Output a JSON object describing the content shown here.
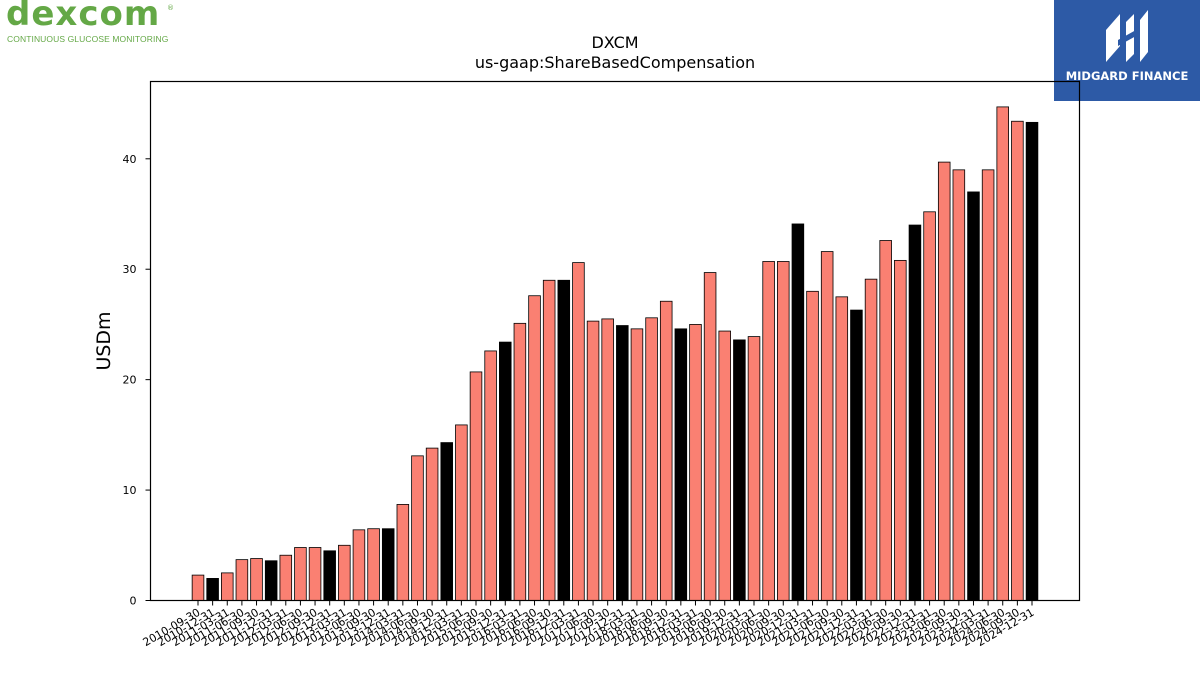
{
  "branding": {
    "left_logo_word": "dexcom",
    "left_logo_tagline": "CONTINUOUS GLUCOSE MONITORING",
    "left_logo_reg": "®",
    "right_logo_name": "MIDGARD FINANCE",
    "colors": {
      "dexcom_green": "#64a846",
      "midgard_blue": "#2d5aa6"
    }
  },
  "chart_data": {
    "type": "bar",
    "title": "DXCM",
    "subtitle": "us-gaap:ShareBasedCompensation",
    "xlabel": "",
    "ylabel": "USDm",
    "ylim": [
      0,
      47
    ],
    "yticks": [
      0,
      10,
      20,
      30,
      40
    ],
    "grid": false,
    "colors": {
      "quarter": "#fa8072",
      "fiscal_year_end": "#000000"
    },
    "categories": [
      "2010-09-30",
      "2010-12-31",
      "2011-03-31",
      "2011-06-30",
      "2011-09-30",
      "2011-12-31",
      "2012-03-31",
      "2012-06-30",
      "2012-09-30",
      "2012-12-31",
      "2013-03-31",
      "2013-06-30",
      "2013-09-30",
      "2013-12-31",
      "2014-03-31",
      "2014-06-30",
      "2014-09-30",
      "2014-12-31",
      "2015-03-31",
      "2015-06-30",
      "2015-09-30",
      "2015-12-31",
      "2016-03-31",
      "2016-06-30",
      "2016-09-30",
      "2016-12-31",
      "2017-03-31",
      "2017-06-30",
      "2017-09-30",
      "2017-12-31",
      "2018-03-31",
      "2018-06-30",
      "2018-09-30",
      "2018-12-31",
      "2019-03-31",
      "2019-06-30",
      "2019-09-30",
      "2019-12-31",
      "2020-03-31",
      "2020-06-30",
      "2020-09-30",
      "2020-12-31",
      "2021-03-31",
      "2021-06-30",
      "2021-09-30",
      "2021-12-31",
      "2022-03-31",
      "2022-06-30",
      "2022-09-30",
      "2022-12-31",
      "2023-03-31",
      "2023-06-30",
      "2023-09-30",
      "2023-12-31",
      "2024-03-31",
      "2024-06-30",
      "2024-09-30",
      "2024-12-31"
    ],
    "values": [
      2.3,
      2.0,
      2.5,
      3.7,
      3.8,
      3.6,
      4.1,
      4.8,
      4.8,
      4.5,
      5.0,
      6.4,
      6.5,
      6.5,
      8.7,
      13.1,
      13.8,
      14.3,
      15.9,
      20.7,
      22.6,
      23.4,
      25.1,
      27.6,
      29.0,
      29.0,
      30.6,
      25.3,
      25.5,
      24.9,
      24.6,
      25.6,
      27.1,
      24.6,
      25.0,
      29.7,
      24.4,
      23.6,
      23.9,
      30.7,
      30.7,
      34.1,
      28.0,
      31.6,
      27.5,
      26.3,
      29.1,
      32.6,
      30.8,
      34.0,
      35.2,
      39.7,
      39.0,
      37.0,
      39.0,
      44.7,
      43.4,
      43.3
    ],
    "highlight": [
      false,
      true,
      false,
      false,
      false,
      true,
      false,
      false,
      false,
      true,
      false,
      false,
      false,
      true,
      false,
      false,
      false,
      true,
      false,
      false,
      false,
      true,
      false,
      false,
      false,
      true,
      false,
      false,
      false,
      true,
      false,
      false,
      false,
      true,
      false,
      false,
      false,
      true,
      false,
      false,
      false,
      true,
      false,
      false,
      false,
      true,
      false,
      false,
      false,
      true,
      false,
      false,
      false,
      true,
      false,
      false,
      false,
      true
    ]
  }
}
